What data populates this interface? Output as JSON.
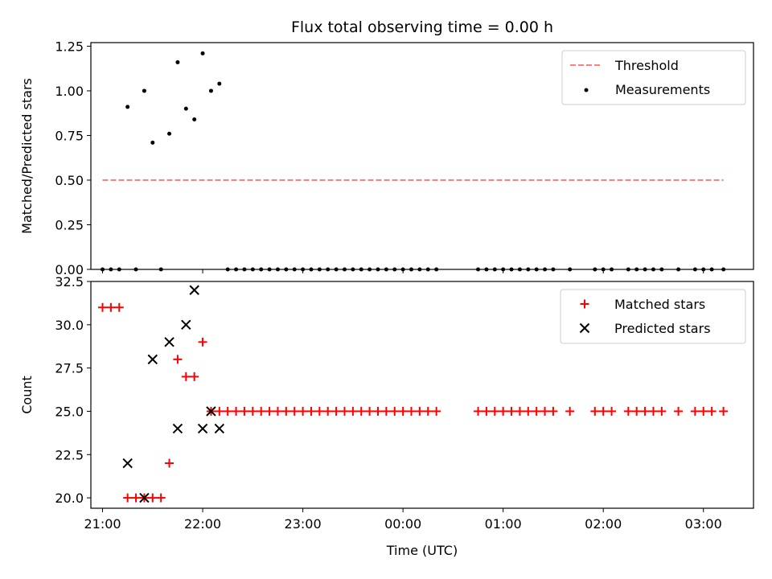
{
  "colors": {
    "threshold": "#ff7f7f",
    "measurement": "#000000",
    "matched": "#ff0000",
    "predicted": "#000000",
    "frame": "#000000",
    "background": "#ffffff"
  },
  "figure": {
    "title": "Flux total observing time = 0.00 h",
    "xlabel": "Time (UTC)"
  },
  "chart_data": [
    {
      "type": "scatter",
      "panel": "top",
      "ylabel": "Matched/Predicted stars",
      "xlim": [
        "20:53",
        "03:30"
      ],
      "ylim": [
        0,
        1.27
      ],
      "x_ticks": [
        "21:00",
        "22:00",
        "23:00",
        "00:00",
        "01:00",
        "02:00",
        "03:00"
      ],
      "y_ticks": [
        "0.00",
        "0.25",
        "0.50",
        "0.75",
        "1.00",
        "1.25"
      ],
      "legend_position": "top-right",
      "threshold": {
        "name": "Threshold",
        "value": 0.5,
        "x_range": [
          "21:00",
          "03:12"
        ],
        "style": "dashed"
      },
      "series": [
        {
          "name": "Measurements",
          "points": [
            [
              "21:00",
              0
            ],
            [
              "21:05",
              0
            ],
            [
              "21:10",
              0
            ],
            [
              "21:15",
              0.91
            ],
            [
              "21:20",
              0
            ],
            [
              "21:25",
              1.0
            ],
            [
              "21:30",
              0.71
            ],
            [
              "21:35",
              0
            ],
            [
              "21:40",
              0.76
            ],
            [
              "21:45",
              1.16
            ],
            [
              "21:50",
              0.9
            ],
            [
              "21:55",
              0.84
            ],
            [
              "22:00",
              1.21
            ],
            [
              "22:05",
              1.0
            ],
            [
              "22:10",
              1.04
            ],
            [
              "22:15",
              0
            ],
            [
              "22:20",
              0
            ],
            [
              "22:25",
              0
            ],
            [
              "22:30",
              0
            ],
            [
              "22:35",
              0
            ],
            [
              "22:40",
              0
            ],
            [
              "22:45",
              0
            ],
            [
              "22:50",
              0
            ],
            [
              "22:55",
              0
            ],
            [
              "23:00",
              0
            ],
            [
              "23:05",
              0
            ],
            [
              "23:10",
              0
            ],
            [
              "23:15",
              0
            ],
            [
              "23:20",
              0
            ],
            [
              "23:25",
              0
            ],
            [
              "23:30",
              0
            ],
            [
              "23:35",
              0
            ],
            [
              "23:40",
              0
            ],
            [
              "23:45",
              0
            ],
            [
              "23:50",
              0
            ],
            [
              "23:55",
              0
            ],
            [
              "00:00",
              0
            ],
            [
              "00:05",
              0
            ],
            [
              "00:10",
              0
            ],
            [
              "00:15",
              0
            ],
            [
              "00:20",
              0
            ],
            [
              "00:45",
              0
            ],
            [
              "00:50",
              0
            ],
            [
              "00:55",
              0
            ],
            [
              "01:00",
              0
            ],
            [
              "01:05",
              0
            ],
            [
              "01:10",
              0
            ],
            [
              "01:15",
              0
            ],
            [
              "01:20",
              0
            ],
            [
              "01:25",
              0
            ],
            [
              "01:30",
              0
            ],
            [
              "01:40",
              0
            ],
            [
              "01:55",
              0
            ],
            [
              "02:00",
              0
            ],
            [
              "02:05",
              0
            ],
            [
              "02:15",
              0
            ],
            [
              "02:20",
              0
            ],
            [
              "02:25",
              0
            ],
            [
              "02:30",
              0
            ],
            [
              "02:35",
              0
            ],
            [
              "02:45",
              0
            ],
            [
              "02:55",
              0
            ],
            [
              "03:00",
              0
            ],
            [
              "03:05",
              0
            ],
            [
              "03:12",
              0
            ]
          ]
        }
      ]
    },
    {
      "type": "scatter",
      "panel": "bottom",
      "ylabel": "Count",
      "xlabel": "Time (UTC)",
      "xlim": [
        "20:53",
        "03:30"
      ],
      "ylim": [
        19.4,
        32.5
      ],
      "x_ticks": [
        "21:00",
        "22:00",
        "23:00",
        "00:00",
        "01:00",
        "02:00",
        "03:00"
      ],
      "y_ticks": [
        "20.0",
        "22.5",
        "25.0",
        "27.5",
        "30.0",
        "32.5"
      ],
      "legend_position": "top-right",
      "series": [
        {
          "name": "Matched stars",
          "marker": "plus",
          "points": [
            [
              "21:00",
              31
            ],
            [
              "21:05",
              31
            ],
            [
              "21:10",
              31
            ],
            [
              "21:15",
              20
            ],
            [
              "21:20",
              20
            ],
            [
              "21:25",
              20
            ],
            [
              "21:30",
              20
            ],
            [
              "21:35",
              20
            ],
            [
              "21:40",
              22
            ],
            [
              "21:45",
              28
            ],
            [
              "21:50",
              27
            ],
            [
              "21:55",
              27
            ],
            [
              "22:00",
              29
            ],
            [
              "22:05",
              25
            ],
            [
              "22:10",
              25
            ],
            [
              "22:15",
              25
            ],
            [
              "22:20",
              25
            ],
            [
              "22:25",
              25
            ],
            [
              "22:30",
              25
            ],
            [
              "22:35",
              25
            ],
            [
              "22:40",
              25
            ],
            [
              "22:45",
              25
            ],
            [
              "22:50",
              25
            ],
            [
              "22:55",
              25
            ],
            [
              "23:00",
              25
            ],
            [
              "23:05",
              25
            ],
            [
              "23:10",
              25
            ],
            [
              "23:15",
              25
            ],
            [
              "23:20",
              25
            ],
            [
              "23:25",
              25
            ],
            [
              "23:30",
              25
            ],
            [
              "23:35",
              25
            ],
            [
              "23:40",
              25
            ],
            [
              "23:45",
              25
            ],
            [
              "23:50",
              25
            ],
            [
              "23:55",
              25
            ],
            [
              "00:00",
              25
            ],
            [
              "00:05",
              25
            ],
            [
              "00:10",
              25
            ],
            [
              "00:15",
              25
            ],
            [
              "00:20",
              25
            ],
            [
              "00:45",
              25
            ],
            [
              "00:50",
              25
            ],
            [
              "00:55",
              25
            ],
            [
              "01:00",
              25
            ],
            [
              "01:05",
              25
            ],
            [
              "01:10",
              25
            ],
            [
              "01:15",
              25
            ],
            [
              "01:20",
              25
            ],
            [
              "01:25",
              25
            ],
            [
              "01:30",
              25
            ],
            [
              "01:40",
              25
            ],
            [
              "01:55",
              25
            ],
            [
              "02:00",
              25
            ],
            [
              "02:05",
              25
            ],
            [
              "02:15",
              25
            ],
            [
              "02:20",
              25
            ],
            [
              "02:25",
              25
            ],
            [
              "02:30",
              25
            ],
            [
              "02:35",
              25
            ],
            [
              "02:45",
              25
            ],
            [
              "02:55",
              25
            ],
            [
              "03:00",
              25
            ],
            [
              "03:05",
              25
            ],
            [
              "03:12",
              25
            ]
          ]
        },
        {
          "name": "Predicted stars",
          "marker": "x",
          "points": [
            [
              "21:15",
              22
            ],
            [
              "21:25",
              20
            ],
            [
              "21:30",
              28
            ],
            [
              "21:40",
              29
            ],
            [
              "21:45",
              24
            ],
            [
              "21:50",
              30
            ],
            [
              "21:55",
              32
            ],
            [
              "22:00",
              24
            ],
            [
              "22:05",
              25
            ],
            [
              "22:10",
              24
            ]
          ]
        }
      ]
    }
  ]
}
